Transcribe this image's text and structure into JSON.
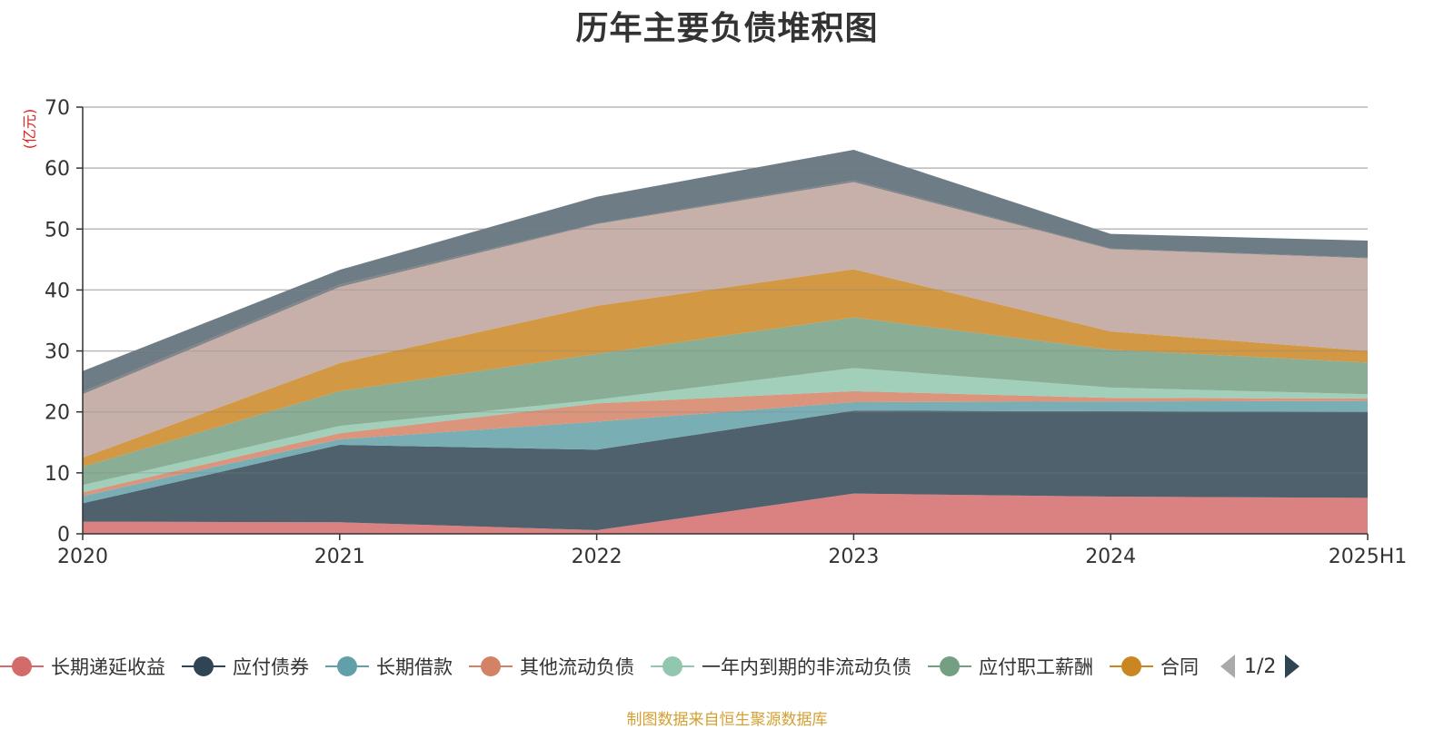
{
  "title": "历年主要负债堆积图",
  "source_note": "制图数据来自恒生聚源数据库",
  "legend": {
    "page": "1/2",
    "visible_series": [
      "长期递延收益",
      "应付债券",
      "长期借款",
      "其他流动负债",
      "一年内到期的非流动负债",
      "应付职工薪酬",
      "合同"
    ]
  },
  "chart_data": {
    "type": "area",
    "stacked": true,
    "title": "历年主要负债堆积图",
    "ylabel": "(亿元)",
    "xlabel": "",
    "ylim": [
      0,
      70
    ],
    "yticks": [
      0,
      10,
      20,
      30,
      40,
      50,
      60,
      70
    ],
    "grid": true,
    "legend_position": "bottom",
    "categories": [
      "2020",
      "2021",
      "2022",
      "2023",
      "2024",
      "2025H1"
    ],
    "series": [
      {
        "name": "长期递延收益",
        "color": "#d46b6b",
        "values": [
          2.0,
          1.9,
          0.6,
          6.6,
          6.1,
          5.9
        ]
      },
      {
        "name": "应付债券",
        "color": "#2f4554",
        "values": [
          3.0,
          12.7,
          13.2,
          13.6,
          14.0,
          14.1
        ]
      },
      {
        "name": "长期借款",
        "color": "#61a0a8",
        "values": [
          1.2,
          0.9,
          4.6,
          1.4,
          1.6,
          1.8
        ]
      },
      {
        "name": "其他流动负债",
        "color": "#d48265",
        "values": [
          0.6,
          1.0,
          3.0,
          1.8,
          0.6,
          0.4
        ]
      },
      {
        "name": "一年内到期的非流动负债",
        "color": "#91c7ae",
        "values": [
          1.2,
          1.2,
          0.6,
          3.8,
          1.7,
          0.7
        ]
      },
      {
        "name": "应付职工薪酬",
        "color": "#749f83",
        "values": [
          3.0,
          5.7,
          7.5,
          8.3,
          6.2,
          5.2
        ]
      },
      {
        "name": "合同",
        "color": "#ca8622",
        "values": [
          1.5,
          4.6,
          7.9,
          7.9,
          3.0,
          1.9
        ]
      },
      {
        "name": "",
        "color": "#bda29a",
        "values": [
          10.4,
          12.5,
          13.4,
          14.3,
          13.5,
          15.2
        ]
      },
      {
        "name": "",
        "color": "#6e7074",
        "values": [
          0.4,
          0.4,
          0.1,
          0.3,
          0.1,
          0.1
        ]
      },
      {
        "name": "",
        "color": "#546570",
        "values": [
          3.4,
          2.4,
          4.4,
          5.0,
          2.4,
          2.8
        ]
      }
    ]
  }
}
